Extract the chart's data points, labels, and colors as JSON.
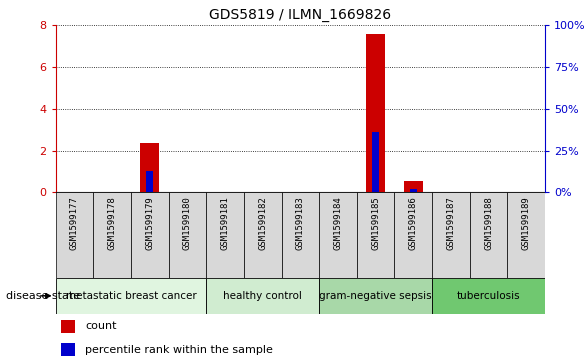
{
  "title": "GDS5819 / ILMN_1669826",
  "samples": [
    "GSM1599177",
    "GSM1599178",
    "GSM1599179",
    "GSM1599180",
    "GSM1599181",
    "GSM1599182",
    "GSM1599183",
    "GSM1599184",
    "GSM1599185",
    "GSM1599186",
    "GSM1599187",
    "GSM1599188",
    "GSM1599189"
  ],
  "count_values": [
    0,
    0,
    2.35,
    0,
    0,
    0,
    0,
    0,
    7.6,
    0.55,
    0,
    0,
    0
  ],
  "percentile_values": [
    0,
    0,
    13,
    0,
    0,
    0,
    0,
    0,
    36,
    2,
    0,
    0,
    0
  ],
  "disease_groups": [
    {
      "label": "metastatic breast cancer",
      "start": 0,
      "end": 3,
      "color": "#e0f5e0"
    },
    {
      "label": "healthy control",
      "start": 4,
      "end": 6,
      "color": "#d0ecd0"
    },
    {
      "label": "gram-negative sepsis",
      "start": 7,
      "end": 9,
      "color": "#a8d8a8"
    },
    {
      "label": "tuberculosis",
      "start": 10,
      "end": 12,
      "color": "#70c870"
    }
  ],
  "ylim_left": [
    0,
    8
  ],
  "ylim_right": [
    0,
    100
  ],
  "yticks_left": [
    0,
    2,
    4,
    6,
    8
  ],
  "yticks_right": [
    0,
    25,
    50,
    75,
    100
  ],
  "ytick_labels_right": [
    "0%",
    "25%",
    "50%",
    "75%",
    "100%"
  ],
  "count_color": "#cc0000",
  "percentile_color": "#0000cc",
  "background_color": "#ffffff",
  "sample_box_color": "#d8d8d8",
  "grid_color": "#000000",
  "disease_state_label": "disease state",
  "legend_count": "count",
  "legend_percentile": "percentile rank within the sample"
}
